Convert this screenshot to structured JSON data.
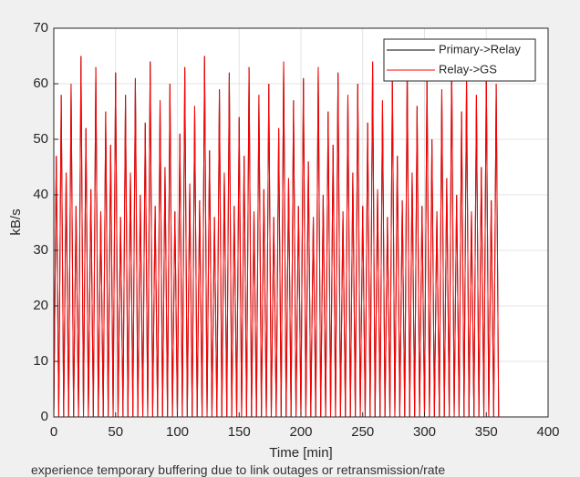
{
  "chart_data": {
    "type": "line",
    "xlabel": "Time [min]",
    "ylabel": "kB/s",
    "xlim": [
      0,
      400
    ],
    "xticks": [
      0,
      50,
      100,
      150,
      200,
      250,
      300,
      350,
      400
    ],
    "ylim": [
      0,
      70
    ],
    "yticks": [
      0,
      10,
      20,
      30,
      40,
      50,
      60,
      70
    ],
    "grid": true,
    "legend": "upper right",
    "x": [
      0,
      2,
      4,
      6,
      8,
      10,
      12,
      14,
      16,
      18,
      20,
      22,
      24,
      26,
      28,
      30,
      32,
      34,
      36,
      38,
      40,
      42,
      44,
      46,
      48,
      50,
      52,
      54,
      56,
      58,
      60,
      62,
      64,
      66,
      68,
      70,
      72,
      74,
      76,
      78,
      80,
      82,
      84,
      86,
      88,
      90,
      92,
      94,
      96,
      98,
      100,
      102,
      104,
      106,
      108,
      110,
      112,
      114,
      116,
      118,
      120,
      122,
      124,
      126,
      128,
      130,
      132,
      134,
      136,
      138,
      140,
      142,
      144,
      146,
      148,
      150,
      152,
      154,
      156,
      158,
      160,
      162,
      164,
      166,
      168,
      170,
      172,
      174,
      176,
      178,
      180,
      182,
      184,
      186,
      188,
      190,
      192,
      194,
      196,
      198,
      200,
      202,
      204,
      206,
      208,
      210,
      212,
      214,
      216,
      218,
      220,
      222,
      224,
      226,
      228,
      230,
      232,
      234,
      236,
      238,
      240,
      242,
      244,
      246,
      248,
      250,
      252,
      254,
      256,
      258,
      260,
      262,
      264,
      266,
      268,
      270,
      272,
      274,
      276,
      278,
      280,
      282,
      284,
      286,
      288,
      290,
      292,
      294,
      296,
      298,
      300,
      302,
      304,
      306,
      308,
      310,
      312,
      314,
      316,
      318,
      320,
      322,
      324,
      326,
      328,
      330,
      332,
      334,
      336,
      338,
      340,
      342,
      344,
      346,
      348,
      350,
      352,
      354,
      356,
      358,
      360
    ],
    "series": [
      {
        "name": "Primary->Relay",
        "color": "#000000",
        "values": [
          0,
          47,
          0,
          58,
          0,
          44,
          0,
          60,
          0,
          38,
          0,
          65,
          0,
          52,
          0,
          41,
          0,
          63,
          0,
          37,
          0,
          55,
          0,
          49,
          0,
          62,
          0,
          36,
          0,
          58,
          0,
          44,
          0,
          61,
          0,
          40,
          0,
          53,
          0,
          64,
          0,
          38,
          0,
          57,
          0,
          45,
          0,
          60,
          0,
          37,
          0,
          51,
          0,
          63,
          0,
          42,
          0,
          56,
          0,
          39,
          0,
          65,
          0,
          48,
          0,
          36,
          0,
          59,
          0,
          44,
          0,
          62,
          0,
          38,
          0,
          54,
          0,
          47,
          0,
          63,
          0,
          37,
          0,
          58,
          0,
          41,
          0,
          60,
          0,
          36,
          0,
          52,
          0,
          64,
          0,
          43,
          0,
          57,
          0,
          38,
          0,
          61,
          0,
          46,
          0,
          36,
          0,
          63,
          0,
          40,
          0,
          55,
          0,
          49,
          0,
          62,
          0,
          37,
          0,
          58,
          0,
          44,
          0,
          60,
          0,
          38,
          0,
          53,
          0,
          64,
          0,
          41,
          0,
          57,
          0,
          36,
          0,
          61,
          0,
          47,
          0,
          39,
          0,
          63,
          0,
          44,
          0,
          56,
          0,
          38,
          0,
          62,
          0,
          50,
          0,
          37,
          0,
          59,
          0,
          43,
          0,
          64,
          0,
          40,
          0,
          55,
          0,
          61,
          0,
          37,
          0,
          58,
          0,
          45,
          0,
          62,
          0,
          39,
          0,
          60,
          0
        ]
      },
      {
        "name": "Relay->GS",
        "color": "#ff0000",
        "values": [
          0,
          47,
          0,
          58,
          0,
          44,
          0,
          60,
          0,
          38,
          0,
          65,
          0,
          52,
          0,
          41,
          0,
          63,
          0,
          37,
          0,
          55,
          0,
          49,
          0,
          62,
          0,
          36,
          0,
          58,
          0,
          44,
          0,
          61,
          0,
          40,
          0,
          53,
          0,
          64,
          0,
          38,
          0,
          57,
          0,
          45,
          0,
          60,
          0,
          37,
          0,
          51,
          0,
          63,
          0,
          42,
          0,
          56,
          0,
          39,
          0,
          65,
          0,
          48,
          0,
          36,
          0,
          59,
          0,
          44,
          0,
          62,
          0,
          38,
          0,
          54,
          0,
          47,
          0,
          63,
          0,
          37,
          0,
          58,
          0,
          41,
          0,
          60,
          0,
          36,
          0,
          52,
          0,
          64,
          0,
          43,
          0,
          57,
          0,
          38,
          0,
          61,
          0,
          46,
          0,
          36,
          0,
          63,
          0,
          40,
          0,
          55,
          0,
          49,
          0,
          62,
          0,
          37,
          0,
          58,
          0,
          44,
          0,
          60,
          0,
          38,
          0,
          53,
          0,
          64,
          0,
          41,
          0,
          57,
          0,
          36,
          0,
          61,
          0,
          47,
          0,
          39,
          0,
          63,
          0,
          44,
          0,
          56,
          0,
          38,
          0,
          62,
          0,
          50,
          0,
          37,
          0,
          59,
          0,
          43,
          0,
          64,
          0,
          40,
          0,
          55,
          0,
          61,
          0,
          37,
          0,
          58,
          0,
          45,
          0,
          62,
          0,
          39,
          0,
          60,
          0
        ]
      }
    ]
  },
  "caption": "experience temporary buffering due to link outages or retransmission/rate"
}
